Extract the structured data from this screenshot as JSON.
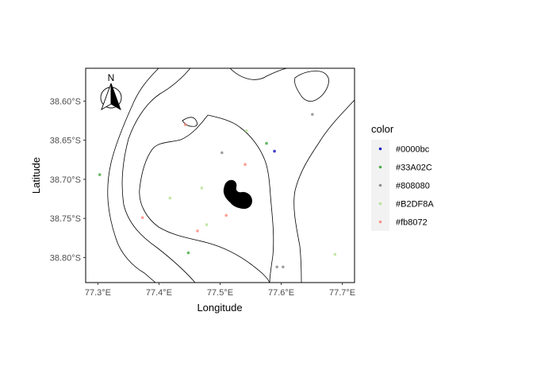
{
  "chart_data": {
    "type": "scatter",
    "title": "",
    "xlabel": "Longitude",
    "ylabel": "Latitude",
    "xlim": [
      77.28,
      77.72
    ],
    "ylim": [
      -38.832,
      -38.558
    ],
    "x_ticks": [
      {
        "value": 77.3,
        "label": "77.3°E"
      },
      {
        "value": 77.4,
        "label": "77.4°E"
      },
      {
        "value": 77.5,
        "label": "77.5°E"
      },
      {
        "value": 77.6,
        "label": "77.6°E"
      },
      {
        "value": 77.7,
        "label": "77.7°E"
      }
    ],
    "y_ticks": [
      {
        "value": -38.6,
        "label": "38.60°S"
      },
      {
        "value": -38.65,
        "label": "38.65°S"
      },
      {
        "value": -38.7,
        "label": "38.70°S"
      },
      {
        "value": -38.75,
        "label": "38.75°S"
      },
      {
        "value": -38.8,
        "label": "38.80°S"
      }
    ],
    "grid": false,
    "legend": {
      "title": "color",
      "placement": "right",
      "entries": [
        "#0000bc",
        "#33A02C",
        "#808080",
        "#B2DF8A",
        "#fb8072"
      ]
    },
    "series": [
      {
        "name": "#0000bc",
        "color": "#0000bc",
        "points": [
          [
            77.589,
            -38.664
          ]
        ]
      },
      {
        "name": "#33A02C",
        "color": "#33A02C",
        "points": [
          [
            77.303,
            -38.694
          ],
          [
            77.576,
            -38.654
          ],
          [
            77.448,
            -38.794
          ]
        ]
      },
      {
        "name": "#808080",
        "color": "#808080",
        "points": [
          [
            77.503,
            -38.666
          ],
          [
            77.651,
            -38.617
          ],
          [
            77.593,
            -38.812
          ],
          [
            77.603,
            -38.812
          ]
        ]
      },
      {
        "name": "#B2DF8A",
        "color": "#B2DF8A",
        "points": [
          [
            77.543,
            -38.638
          ],
          [
            77.418,
            -38.724
          ],
          [
            77.47,
            -38.711
          ],
          [
            77.688,
            -38.796
          ],
          [
            77.478,
            -38.758
          ]
        ]
      },
      {
        "name": "#fb8072",
        "color": "#fb8072",
        "points": [
          [
            77.443,
            -38.63
          ],
          [
            77.541,
            -38.681
          ],
          [
            77.373,
            -38.749
          ],
          [
            77.51,
            -38.746
          ],
          [
            77.463,
            -38.766
          ]
        ]
      }
    ]
  },
  "map": {
    "north_arrow_label": "N",
    "island_color": "#000000",
    "panel_border_color": "#000000",
    "contour_color": "#000000"
  }
}
